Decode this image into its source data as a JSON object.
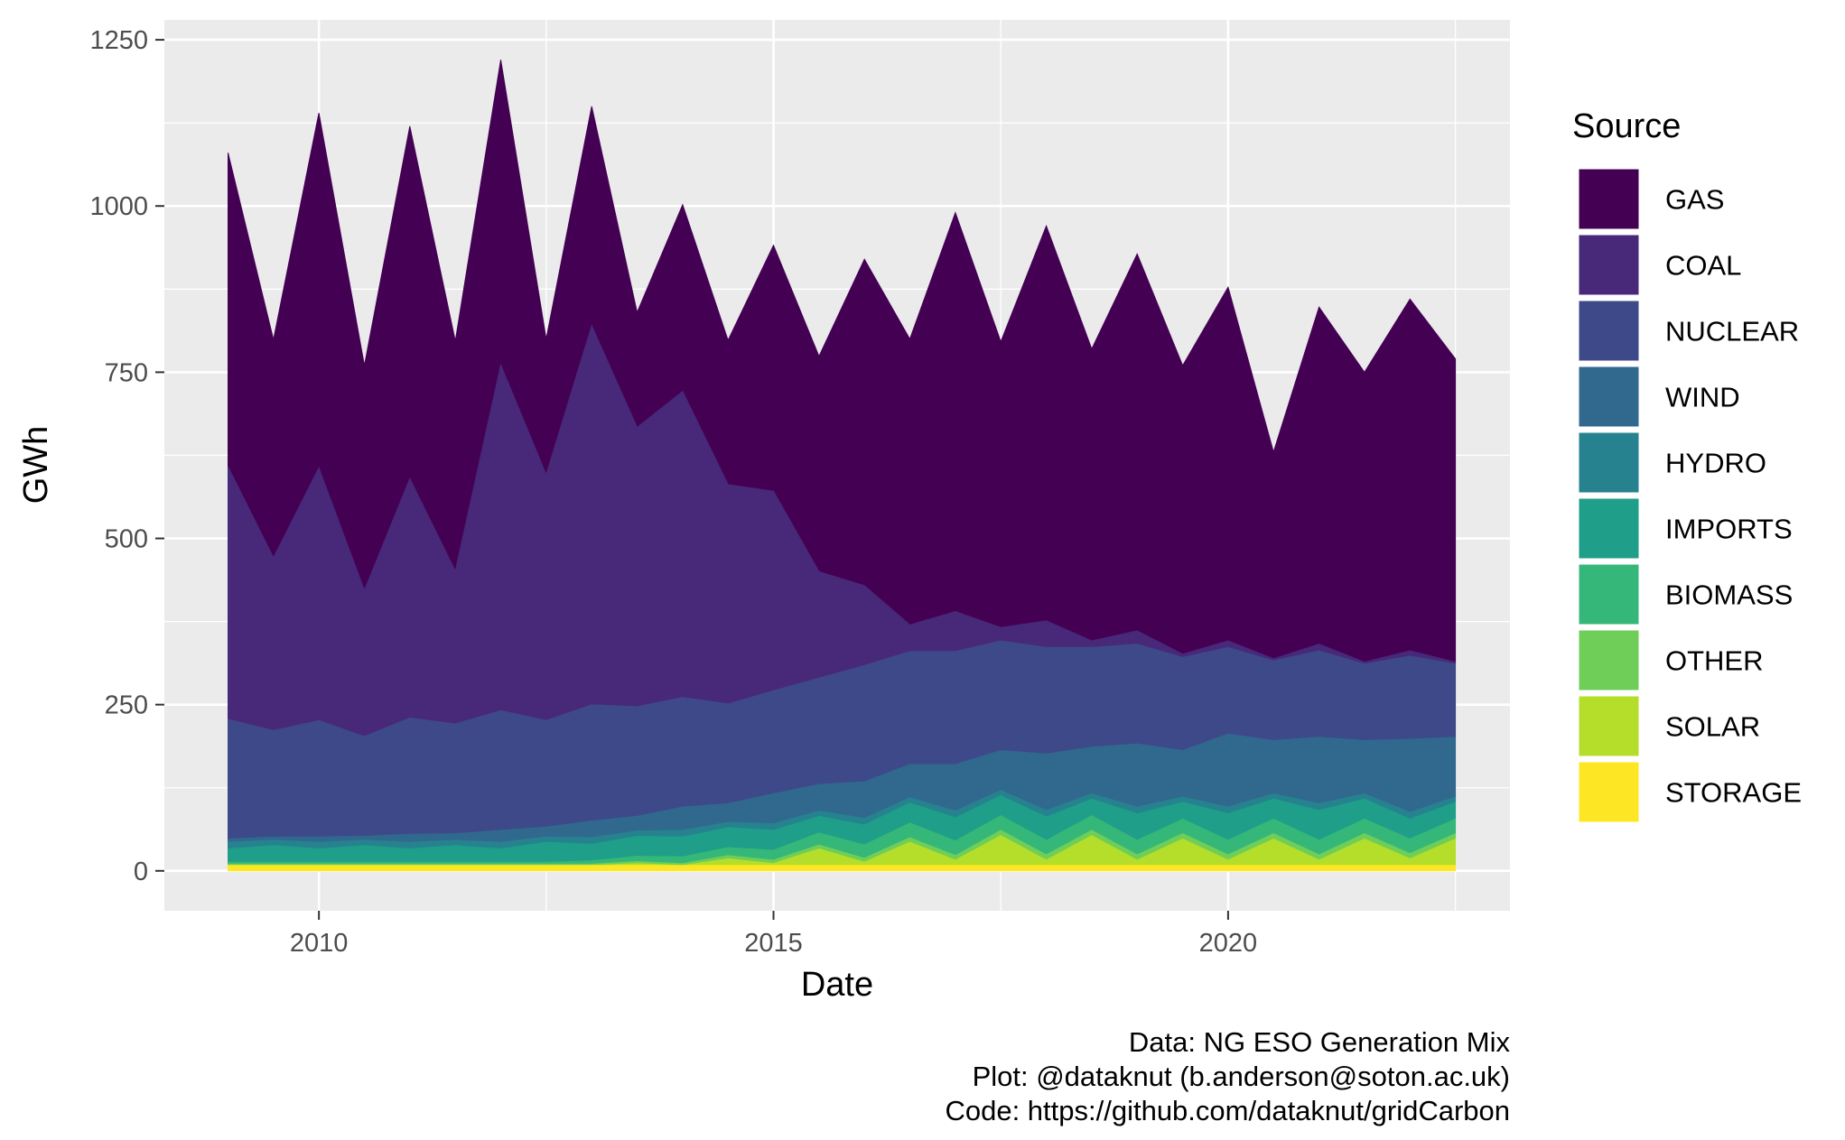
{
  "chart_data": {
    "type": "area",
    "stacked": true,
    "xlabel": "Date",
    "ylabel": "GWh",
    "xlim": [
      2008.3,
      2023.1
    ],
    "ylim": [
      -60,
      1280
    ],
    "x_ticks": [
      2010,
      2015,
      2020
    ],
    "x_tick_labels": [
      "2010",
      "2015",
      "2020"
    ],
    "y_ticks": [
      0,
      250,
      500,
      750,
      1000,
      1250
    ],
    "y_tick_labels": [
      "0",
      "250",
      "500",
      "750",
      "1000",
      "1250"
    ],
    "grid": true,
    "legend": {
      "title": "Source",
      "position": "right"
    },
    "x": [
      2009.0,
      2009.5,
      2010.0,
      2010.5,
      2011.0,
      2011.5,
      2012.0,
      2012.5,
      2013.0,
      2013.5,
      2014.0,
      2014.5,
      2015.0,
      2015.5,
      2016.0,
      2016.5,
      2017.0,
      2017.5,
      2018.0,
      2018.5,
      2019.0,
      2019.5,
      2020.0,
      2020.5,
      2021.0,
      2021.5,
      2022.0,
      2022.5
    ],
    "series": [
      {
        "name": "STORAGE",
        "color": "#fde725",
        "values": [
          8,
          8,
          8,
          8,
          8,
          8,
          8,
          8,
          8,
          8,
          8,
          8,
          8,
          8,
          8,
          8,
          8,
          8,
          8,
          8,
          8,
          8,
          8,
          8,
          8,
          8,
          8,
          8
        ]
      },
      {
        "name": "SOLAR",
        "color": "#b5de2b",
        "values": [
          0,
          0,
          0,
          0,
          0,
          0,
          0,
          0,
          0,
          3,
          0,
          10,
          3,
          25,
          5,
          35,
          8,
          45,
          8,
          45,
          8,
          40,
          8,
          40,
          8,
          40,
          10,
          40
        ]
      },
      {
        "name": "OTHER",
        "color": "#6ece58",
        "values": [
          2,
          2,
          2,
          2,
          2,
          2,
          2,
          2,
          2,
          3,
          3,
          5,
          5,
          6,
          6,
          7,
          7,
          8,
          8,
          8,
          8,
          8,
          8,
          8,
          8,
          8,
          8,
          8
        ]
      },
      {
        "name": "BIOMASS",
        "color": "#35b779",
        "values": [
          3,
          3,
          3,
          3,
          3,
          3,
          3,
          3,
          5,
          8,
          10,
          12,
          15,
          18,
          20,
          22,
          22,
          22,
          22,
          22,
          22,
          22,
          22,
          22,
          22,
          22,
          22,
          22
        ]
      },
      {
        "name": "IMPORTS",
        "color": "#1f9e89",
        "values": [
          20,
          25,
          20,
          25,
          20,
          25,
          20,
          30,
          25,
          30,
          30,
          30,
          30,
          25,
          30,
          30,
          35,
          30,
          35,
          25,
          40,
          25,
          40,
          30,
          45,
          30,
          30,
          25
        ]
      },
      {
        "name": "HYDRO",
        "color": "#26828e",
        "values": [
          10,
          8,
          10,
          8,
          10,
          8,
          10,
          8,
          10,
          8,
          10,
          8,
          10,
          8,
          10,
          8,
          10,
          8,
          10,
          8,
          10,
          8,
          10,
          8,
          10,
          8,
          10,
          8
        ]
      },
      {
        "name": "WIND",
        "color": "#31688e",
        "values": [
          5,
          5,
          8,
          6,
          12,
          10,
          18,
          15,
          25,
          22,
          35,
          28,
          45,
          40,
          55,
          50,
          70,
          60,
          85,
          70,
          95,
          70,
          110,
          80,
          100,
          80,
          110,
          90
        ]
      },
      {
        "name": "NUCLEAR",
        "color": "#3e4989",
        "values": [
          180,
          160,
          175,
          150,
          175,
          165,
          180,
          160,
          175,
          165,
          165,
          150,
          155,
          160,
          175,
          170,
          170,
          165,
          160,
          150,
          150,
          140,
          130,
          120,
          130,
          115,
          125,
          110
        ]
      },
      {
        "name": "COAL",
        "color": "#482878",
        "values": [
          380,
          260,
          380,
          220,
          360,
          230,
          520,
          370,
          570,
          420,
          460,
          330,
          300,
          160,
          120,
          40,
          60,
          20,
          40,
          10,
          20,
          5,
          10,
          3,
          10,
          3,
          8,
          3
        ]
      },
      {
        "name": "GAS",
        "color": "#440154",
        "values": [
          472,
          328,
          534,
          338,
          530,
          346,
          459,
          204,
          330,
          173,
          281,
          217,
          370,
          324,
          491,
          430,
          600,
          430,
          594,
          439,
          567,
          434,
          532,
          311,
          507,
          436,
          529,
          456
        ]
      }
    ],
    "caption": [
      "Data: NG ESO Generation Mix",
      "Plot: @dataknut (b.anderson@soton.ac.uk)",
      "Code: https://github.com/dataknut/gridCarbon"
    ]
  }
}
